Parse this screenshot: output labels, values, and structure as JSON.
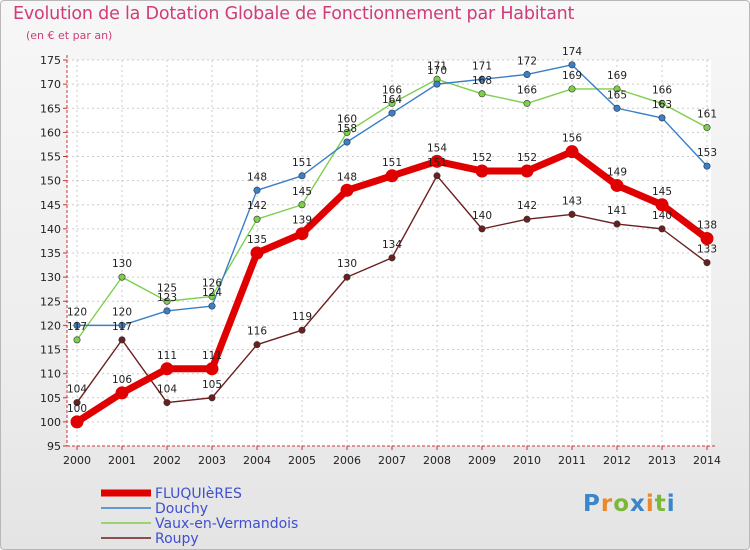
{
  "chart_data": {
    "type": "line",
    "title": "Evolution de la Dotation Globale de Fonctionnement par Habitant",
    "subtitle": "(en € et par an)",
    "xlabel": "",
    "ylabel": "",
    "ylim": [
      95,
      175
    ],
    "yticks": [
      "95",
      "100",
      "105",
      "110",
      "115",
      "120",
      "125",
      "130",
      "135",
      "140",
      "145",
      "150",
      "155",
      "160",
      "165",
      "170",
      "175"
    ],
    "categories": [
      "2000",
      "2001",
      "2002",
      "2003",
      "2004",
      "2005",
      "2006",
      "2007",
      "2008",
      "2009",
      "2010",
      "2011",
      "2012",
      "2013",
      "2014"
    ],
    "series": [
      {
        "name": "FLUQUIèRES",
        "color": "#e00000",
        "values": [
          100,
          106,
          111,
          111,
          135,
          139,
          148,
          151,
          154,
          152,
          152,
          156,
          149,
          145,
          138
        ],
        "labels": [
          "100",
          "106",
          "111",
          "111",
          "135",
          "139",
          "148",
          "151",
          "154",
          "152",
          "152",
          "156",
          "149",
          "145",
          "138"
        ]
      },
      {
        "name": "Douchy",
        "color": "#3a7fc8",
        "values": [
          120,
          120,
          123,
          124,
          148,
          151,
          158,
          164,
          170,
          171,
          172,
          174,
          165,
          163,
          153
        ],
        "labels": [
          "120",
          "120",
          "123",
          "124",
          "148",
          "151",
          "158",
          "164",
          "170",
          "171",
          "172",
          "174",
          "165",
          "163",
          "153"
        ]
      },
      {
        "name": "Vaux-en-Vermandois",
        "color": "#7ed04c",
        "values": [
          117,
          130,
          125,
          126,
          142,
          145,
          160,
          166,
          171,
          168,
          166,
          169,
          169,
          166,
          161
        ],
        "labels": [
          "117",
          "130",
          "125",
          "126",
          "142",
          "145",
          "160",
          "166",
          "171",
          "168",
          "166",
          "169",
          "169",
          "166",
          "161"
        ]
      },
      {
        "name": "Roupy",
        "color": "#6b1f1f",
        "values": [
          104,
          117,
          104,
          105,
          116,
          119,
          130,
          134,
          151,
          140,
          142,
          143,
          141,
          140,
          133
        ],
        "labels": [
          "104",
          "117",
          "104",
          "105",
          "116",
          "119",
          "130",
          "134",
          "151",
          "140",
          "142",
          "143",
          "141",
          "140",
          "133"
        ]
      }
    ],
    "legend_position": "bottom-left",
    "grid": true
  },
  "legend_text_color": "#3f4fd0",
  "logo": {
    "letters": [
      "P",
      "r",
      "o",
      "x",
      "i",
      "t",
      "i"
    ]
  }
}
